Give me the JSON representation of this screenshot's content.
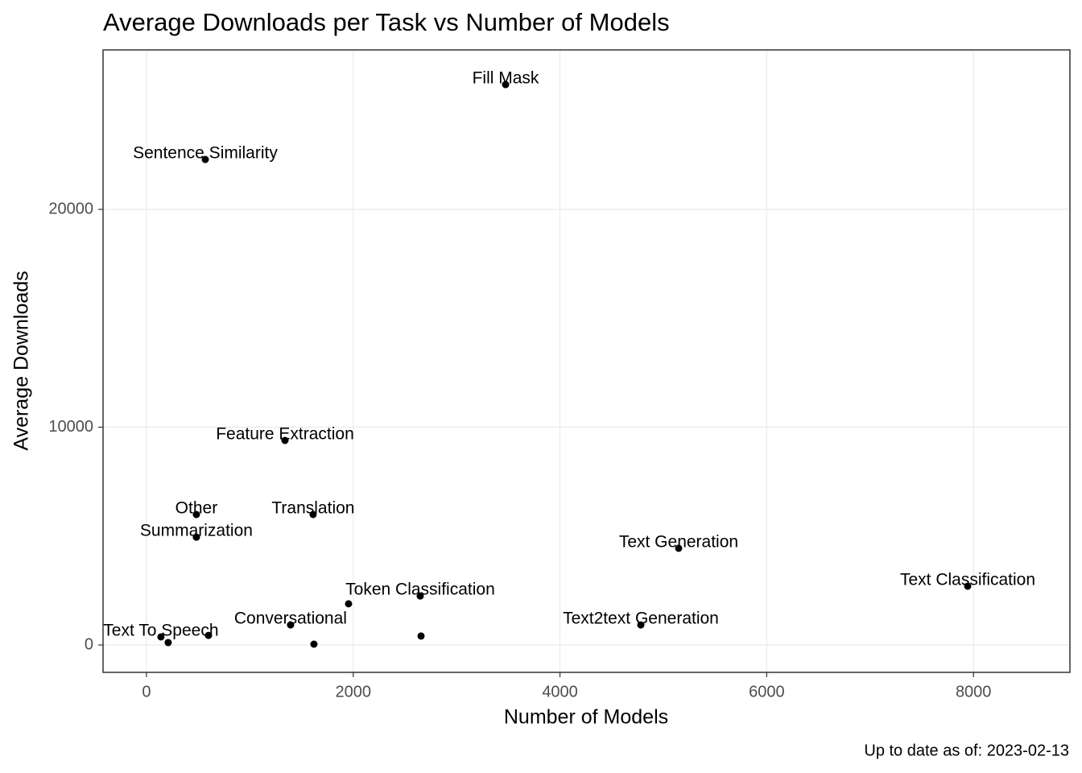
{
  "chart_data": {
    "type": "scatter",
    "title": "Average Downloads per Task vs Number of Models",
    "xlabel": "Number of Models",
    "ylabel": "Average Downloads",
    "caption": "Up to date as of: 2023-02-13",
    "color": "#000000",
    "grid": true,
    "x": [
      3474,
      569,
      1340,
      483,
      1612,
      483,
      5148,
      7944,
      2648,
      4782,
      1394,
      140,
      1955,
      600,
      210,
      1620,
      2656
    ],
    "values": [
      25730,
      22290,
      9390,
      5990,
      5990,
      4950,
      4440,
      2700,
      2250,
      920,
      920,
      370,
      1890,
      440,
      110,
      37,
      410
    ],
    "labels": [
      "Fill Mask",
      "Sentence Similarity",
      "Feature Extraction",
      "Other",
      "Translation",
      "Summarization",
      "Text Generation",
      "Text Classification",
      "Token Classification",
      "Text2text Generation",
      "Conversational",
      "Text To Speech",
      null,
      null,
      null,
      null,
      null
    ],
    "xlim": [
      -420,
      8933
    ],
    "ylim": [
      -1257,
      27320
    ],
    "xticks": [
      0,
      2000,
      4000,
      6000,
      8000
    ],
    "yticks": [
      0,
      10000,
      20000
    ]
  }
}
